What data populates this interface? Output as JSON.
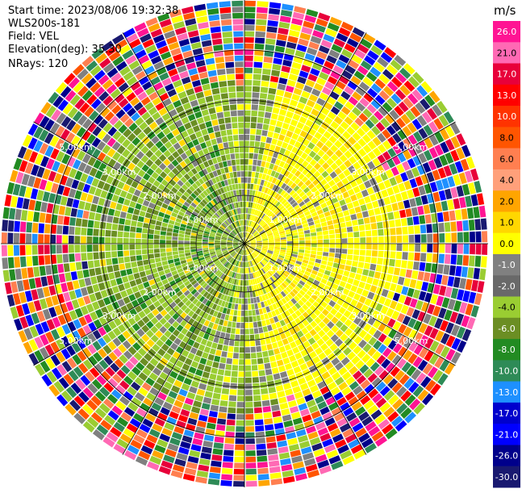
{
  "info": {
    "start_time": "Start time: 2023/08/06 19:32:38",
    "instrument": "WLS200s-181",
    "field": "Field: VEL",
    "elevation": "Elevation(deg): 35.30",
    "nrays": "NRays: 120"
  },
  "colorbar": {
    "unit": "m/s",
    "ticks": [
      "26.0",
      "21.0",
      "17.0",
      "13.0",
      "10.0",
      "8.0",
      "6.0",
      "4.0",
      "2.0",
      "1.0",
      "0.0",
      "-1.0",
      "-2.0",
      "-4.0",
      "-6.0",
      "-8.0",
      "-10.0",
      "-13.0",
      "-17.0",
      "-21.0",
      "-26.0",
      "-30.0"
    ],
    "colors": [
      "#ff1493",
      "#ff69b4",
      "#e8003a",
      "#ff0000",
      "#ff3300",
      "#ff5500",
      "#ff7f50",
      "#ffa07a",
      "#ffa500",
      "#ffd700",
      "#ffff00",
      "#808080",
      "#696969",
      "#9acd32",
      "#6b8e23",
      "#228b22",
      "#2e8b57",
      "#1e90ff",
      "#0000cd",
      "#0000ff",
      "#00008b",
      "#191970"
    ]
  },
  "chart_data": {
    "type": "heatmap",
    "projection": "polar-ppi",
    "rays": 120,
    "max_range_km": 5.0,
    "range_rings_km": [
      1.0,
      2.0,
      3.0,
      5.0
    ],
    "ring_labels": [
      "1.00km",
      "2.00km",
      "3.00km",
      "5.00km"
    ],
    "field": "VEL",
    "unit": "m/s",
    "pattern": "near-range negative (green) on west side, positive (yellow) on east side, grey near zero; noisy multi-color beyond ~3 km"
  }
}
